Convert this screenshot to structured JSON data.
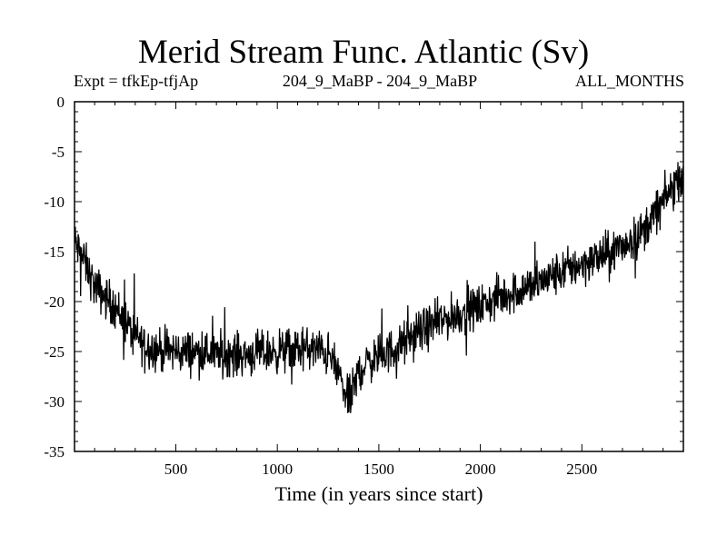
{
  "chart_data": {
    "type": "line",
    "title": "Merid Stream Func. Atlantic (Sv)",
    "subtitle_left": "Expt = tfkEp-tfjAp",
    "subtitle_center": "204_9_MaBP - 204_9_MaBP",
    "subtitle_right": "ALL_MONTHS",
    "xlabel": "Time (in years since start)",
    "ylabel": "",
    "xlim": [
      1,
      3000
    ],
    "ylim": [
      -35,
      0
    ],
    "xticks": [
      500,
      1000,
      1500,
      2000,
      2500
    ],
    "yticks": [
      0,
      -5,
      -10,
      -15,
      -20,
      -25,
      -30,
      -35
    ],
    "grid": false,
    "series": [
      {
        "x": [
          1,
          50,
          100,
          150,
          200,
          250,
          300,
          350,
          400,
          500,
          600,
          700,
          800,
          900,
          1000,
          1100,
          1200,
          1250,
          1300,
          1330,
          1350,
          1370,
          1400,
          1450,
          1500,
          1550,
          1600,
          1650,
          1700,
          1800,
          1900,
          2000,
          2100,
          2200,
          2300,
          2400,
          2500,
          2600,
          2700,
          2800,
          2850,
          2900,
          2950,
          3000
        ],
        "values": [
          -14,
          -16,
          -18.5,
          -19.5,
          -20.5,
          -22,
          -23.5,
          -24.3,
          -24.8,
          -25,
          -25,
          -25.2,
          -25.3,
          -25.2,
          -25,
          -24.8,
          -24.8,
          -25.3,
          -27,
          -29,
          -30,
          -29,
          -27,
          -26,
          -25.5,
          -25,
          -24.5,
          -23.8,
          -23,
          -22,
          -21.2,
          -20.5,
          -19.5,
          -18.8,
          -18,
          -17,
          -16.2,
          -15.5,
          -14.5,
          -13,
          -11.5,
          -10,
          -8.5,
          -7
        ]
      }
    ],
    "noise_amplitude": 1.3,
    "line_color": "#000000"
  }
}
